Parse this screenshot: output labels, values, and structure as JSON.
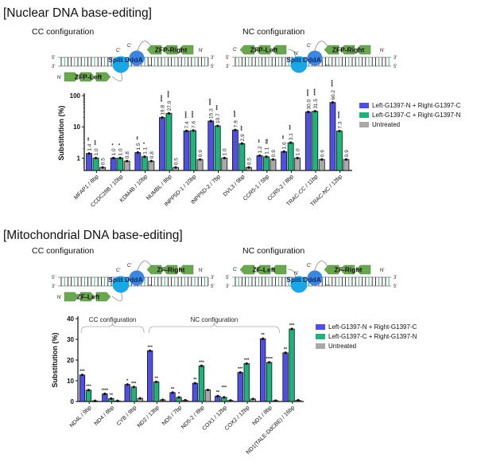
{
  "colors": {
    "series1": "#4f4fe6",
    "series2": "#1db37a",
    "untreated": "#a9a9a9",
    "zf_green": "#6aa84f",
    "dddA_light": "#1aa7e6",
    "dddA_dark": "#3b86e0",
    "cut_mark": "#d02020"
  },
  "nuclear": {
    "title": "[Nuclear DNA base-editing]",
    "cc_label": "CC configuration",
    "nc_label": "NC configuration",
    "diagram": {
      "left_protein": "ZFP-Left",
      "right_protein": "ZFP-Right",
      "deaminase": "Split DddA",
      "deaminase_sub": "tox",
      "c_term": "C'",
      "n_term": "N'",
      "five": "5'",
      "three": "3'"
    }
  },
  "mito": {
    "title": "[Mitochondrial DNA base-editing]",
    "cc_label": "CC configuration",
    "nc_label": "NC configuration",
    "diagram": {
      "left_protein": "ZF-Left",
      "right_protein": "ZF-Right",
      "deaminase": "Split DddA",
      "deaminase_sub": "tox",
      "c_term": "C'",
      "n_term": "N'",
      "five": "5'",
      "three": "3'"
    }
  },
  "chart_data": [
    {
      "type": "bar",
      "ylabel": "Substitution (%)",
      "yscale": "log",
      "ylim": [
        0.4,
        100
      ],
      "yticks": [
        "1",
        "10",
        "100"
      ],
      "legend_position": "right",
      "categories": [
        "MFAP1 / 8bp",
        "CCDC28B / 10bp",
        "KDM4B / 10bp",
        "NUMBL / 8bp",
        "INPP5D-1 / 10bp",
        "INPP5D-2 / 7bp",
        "DVL3 / 9bp",
        "CCR5-1 / 5bp",
        "CCR5-2 / 8bp",
        "TRAC-CC / 11bp",
        "TRAC-NC / 12bp"
      ],
      "series": [
        {
          "name": "Left-G1397-N + Right-G1397-C",
          "values": [
            1.4,
            1.0,
            1.5,
            19.8,
            7.4,
            15.3,
            7.9,
            1.2,
            1.6,
            30.0,
            60.2
          ],
          "labels": [
            "1.4",
            "1.0",
            "1.5",
            "19.8",
            "7.4",
            "15.3",
            "7.9",
            "1.2",
            "1.6",
            "30.0",
            "60.2"
          ],
          "significance": [
            "**",
            "*",
            "**",
            "****",
            "****",
            "****",
            "****",
            "**",
            "**",
            "****",
            "****"
          ]
        },
        {
          "name": "Left-G1397-C + Right-G1397-N",
          "values": [
            1.0,
            1.0,
            1.1,
            27.0,
            7.6,
            10.7,
            2.9,
            1.1,
            3.1,
            31.5,
            7.3
          ],
          "labels": [
            "1.0",
            "1.0",
            "1.1",
            "27.0",
            "7.6",
            "10.7",
            "2.9",
            "1.1",
            "3.1",
            "31.5",
            "7.3"
          ],
          "significance": [
            "***",
            "*",
            "*",
            "****",
            "****",
            "***",
            "***",
            "ns",
            "***",
            "****",
            "****"
          ]
        },
        {
          "name": "Untreated",
          "values": [
            0.5,
            0.8,
            0.8,
            0.5,
            0.9,
            1.0,
            0.5,
            0.9,
            1.0,
            0.9,
            0.9
          ],
          "labels": [
            "0.5",
            "0.8",
            "0.8",
            "0.5",
            "0.9",
            "1.0",
            "0.5",
            "0.9",
            "1.0",
            "0.9",
            "0.9"
          ],
          "significance": [
            "",
            "",
            "",
            "",
            "",
            "",
            "",
            "",
            "",
            "",
            ""
          ]
        }
      ]
    },
    {
      "type": "bar",
      "ylabel": "Substitution (%)",
      "yscale": "linear",
      "ylim": [
        0,
        40
      ],
      "yticks": [
        "0",
        "10",
        "20",
        "30",
        "40"
      ],
      "legend_position": "right",
      "annotations": [
        {
          "text": "CC configuration",
          "from": "ND4L / 9bp",
          "to": "CYB / 9bp"
        },
        {
          "text": "NC configuration",
          "from": "ND2 / 13bp",
          "to": "ND1 / 8bp"
        }
      ],
      "categories": [
        "ND4L / 9bp",
        "ND4 / 8bp",
        "CYB / 9bp",
        "ND2 / 13bp",
        "ND5 / 7bp",
        "ND5-2 / 8bp",
        "COX1 / 12bp",
        "COX2 / 12bp",
        "ND1 / 8bp",
        "ND1(TALE-DdCBE) / 16bp"
      ],
      "series": [
        {
          "name": "Left-G1397-N + Right-G1397-C",
          "values": [
            12.8,
            3.7,
            8.2,
            24.5,
            4.3,
            8.8,
            2.6,
            14.0,
            30.3,
            23.5
          ],
          "significance": [
            "***",
            "****",
            "*",
            "***",
            "**",
            "**",
            "**",
            "***",
            "**",
            "**"
          ]
        },
        {
          "name": "Left-G1397-C + Right-G1397-N",
          "values": [
            5.5,
            1.4,
            7.0,
            9.5,
            2.0,
            17.2,
            2.0,
            18.3,
            18.9,
            35.0
          ],
          "significance": [
            "***",
            "**",
            "***",
            "**",
            "*",
            "***",
            "***",
            "***",
            "****",
            "***"
          ]
        },
        {
          "name": "Untreated",
          "values": [
            0.3,
            0.3,
            1.5,
            0.8,
            0.6,
            5.6,
            0.5,
            1.2,
            0.4,
            0.6
          ],
          "significance": [
            "",
            "",
            "",
            "",
            "",
            "",
            "",
            "",
            "",
            ""
          ]
        }
      ]
    }
  ]
}
